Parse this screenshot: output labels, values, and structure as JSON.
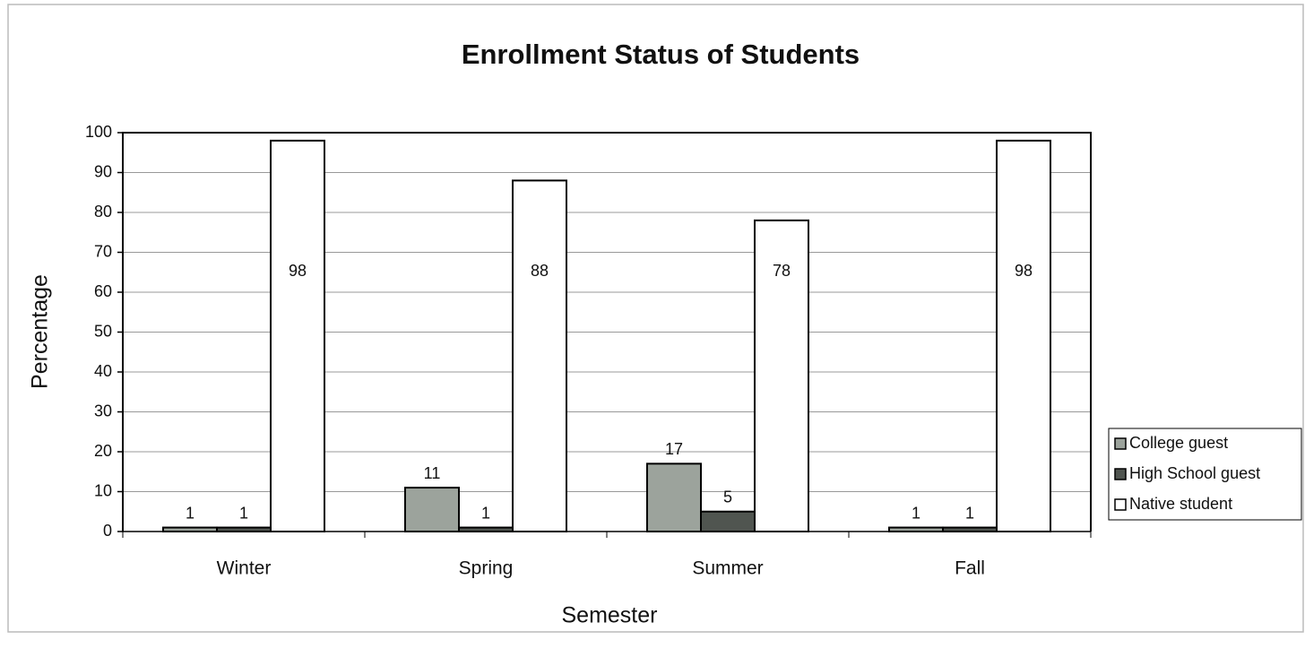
{
  "chart_data": {
    "type": "bar",
    "title": "Enrollment Status of Students",
    "x_label": "Semester",
    "y_label": "Percentage",
    "categories": [
      "Winter",
      "Spring",
      "Summer",
      "Fall"
    ],
    "series": [
      {
        "name": "College guest",
        "color": "#9ca39c",
        "values": [
          1,
          11,
          17,
          1
        ]
      },
      {
        "name": "High School guest",
        "color": "#505550",
        "values": [
          1,
          1,
          5,
          1
        ]
      },
      {
        "name": "Native student",
        "color": "#ffffff",
        "values": [
          98,
          88,
          78,
          98
        ]
      }
    ],
    "ylim": [
      0,
      100
    ],
    "yticks": [
      0,
      10,
      20,
      30,
      40,
      50,
      60,
      70,
      80,
      90,
      100
    ],
    "grid": true,
    "legend": "right"
  }
}
